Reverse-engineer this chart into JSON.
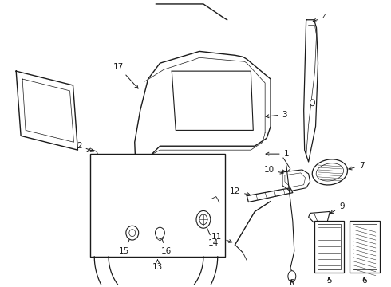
{
  "background_color": "#ffffff",
  "line_color": "#1a1a1a",
  "fig_width": 4.9,
  "fig_height": 3.6,
  "dpi": 100,
  "label_fontsize": 7.5
}
